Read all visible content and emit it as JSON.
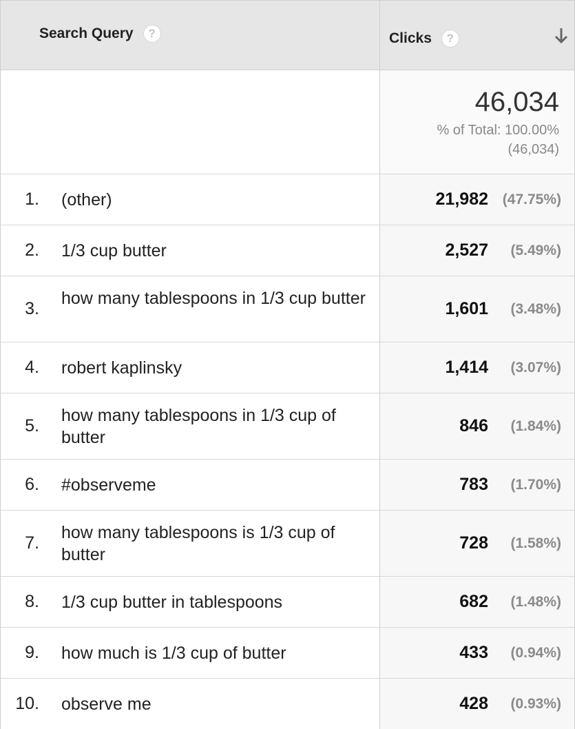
{
  "header": {
    "query_label": "Search Query",
    "clicks_label": "Clicks",
    "help_glyph": "?",
    "sort_icon": "arrow-down-icon"
  },
  "totals": {
    "value": "46,034",
    "pct_of_total": "% of Total: 100.00%",
    "abs_total": "(46,034)"
  },
  "rows": [
    {
      "index": "1.",
      "query": "(other)",
      "clicks": "21,982",
      "pct": "(47.75%)"
    },
    {
      "index": "2.",
      "query": "1/3 cup butter",
      "clicks": "2,527",
      "pct": "(5.49%)"
    },
    {
      "index": "3.",
      "query": "how many tablespoons in 1/3 cup butter",
      "clicks": "1,601",
      "pct": "(3.48%)"
    },
    {
      "index": "4.",
      "query": "robert kaplinsky",
      "clicks": "1,414",
      "pct": "(3.07%)"
    },
    {
      "index": "5.",
      "query": "how many tablespoons in 1/3 cup of butter",
      "clicks": "846",
      "pct": "(1.84%)"
    },
    {
      "index": "6.",
      "query": "#observeme",
      "clicks": "783",
      "pct": "(1.70%)"
    },
    {
      "index": "7.",
      "query": "how many tablespoons is 1/3 cup of butter",
      "clicks": "728",
      "pct": "(1.58%)"
    },
    {
      "index": "8.",
      "query": "1/3 cup butter in tablespoons",
      "clicks": "682",
      "pct": "(1.48%)"
    },
    {
      "index": "9.",
      "query": "how much is 1/3 cup of butter",
      "clicks": "433",
      "pct": "(0.94%)"
    },
    {
      "index": "10.",
      "query": "observe me",
      "clicks": "428",
      "pct": "(0.93%)"
    }
  ]
}
